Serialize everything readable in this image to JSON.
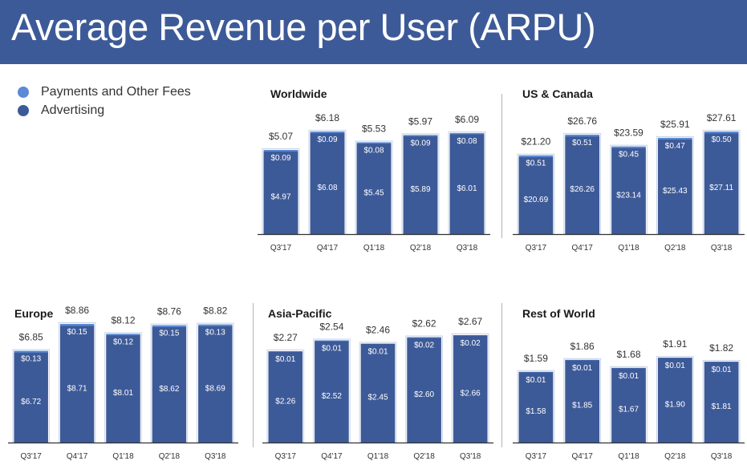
{
  "title": "Average Revenue per User (ARPU)",
  "legend": [
    {
      "label": "Payments and Other Fees",
      "color": "#5b8ad6"
    },
    {
      "label": "Advertising",
      "color": "#3d5a98"
    }
  ],
  "colors": {
    "advertising": "#3d5a98",
    "payments": "#5b8ad6",
    "header": "#3d5a98"
  },
  "chart_data": [
    {
      "type": "bar",
      "stacked": true,
      "title": "Worldwide",
      "categories": [
        "Q3'17",
        "Q4'17",
        "Q1'18",
        "Q2'18",
        "Q3'18"
      ],
      "series": [
        {
          "name": "Advertising",
          "values": [
            4.97,
            6.08,
            5.45,
            5.89,
            6.01
          ],
          "labels": [
            "$4.97",
            "$6.08",
            "$5.45",
            "$5.89",
            "$6.01"
          ]
        },
        {
          "name": "Payments and Other Fees",
          "values": [
            0.09,
            0.09,
            0.08,
            0.09,
            0.08
          ],
          "labels": [
            "$0.09",
            "$0.09",
            "$0.08",
            "$0.09",
            "$0.08"
          ]
        }
      ],
      "totals": [
        5.07,
        6.18,
        5.53,
        5.97,
        6.09
      ],
      "total_labels": [
        "$5.07",
        "$6.18",
        "$5.53",
        "$5.97",
        "$6.09"
      ]
    },
    {
      "type": "bar",
      "stacked": true,
      "title": "US & Canada",
      "categories": [
        "Q3'17",
        "Q4'17",
        "Q1'18",
        "Q2'18",
        "Q3'18"
      ],
      "series": [
        {
          "name": "Advertising",
          "values": [
            20.69,
            26.26,
            23.14,
            25.43,
            27.11
          ],
          "labels": [
            "$20.69",
            "$26.26",
            "$23.14",
            "$25.43",
            "$27.11"
          ]
        },
        {
          "name": "Payments and Other Fees",
          "values": [
            0.51,
            0.51,
            0.45,
            0.47,
            0.5
          ],
          "labels": [
            "$0.51",
            "$0.51",
            "$0.45",
            "$0.47",
            "$0.50"
          ]
        }
      ],
      "totals": [
        21.2,
        26.76,
        23.59,
        25.91,
        27.61
      ],
      "total_labels": [
        "$21.20",
        "$26.76",
        "$23.59",
        "$25.91",
        "$27.61"
      ]
    },
    {
      "type": "bar",
      "stacked": true,
      "title": "Europe",
      "categories": [
        "Q3'17",
        "Q4'17",
        "Q1'18",
        "Q2'18",
        "Q3'18"
      ],
      "series": [
        {
          "name": "Advertising",
          "values": [
            6.72,
            8.71,
            8.01,
            8.62,
            8.69
          ],
          "labels": [
            "$6.72",
            "$8.71",
            "$8.01",
            "$8.62",
            "$8.69"
          ]
        },
        {
          "name": "Payments and Other Fees",
          "values": [
            0.13,
            0.15,
            0.12,
            0.15,
            0.13
          ],
          "labels": [
            "$0.13",
            "$0.15",
            "$0.12",
            "$0.15",
            "$0.13"
          ]
        }
      ],
      "totals": [
        6.85,
        8.86,
        8.12,
        8.76,
        8.82
      ],
      "total_labels": [
        "$6.85",
        "$8.86",
        "$8.12",
        "$8.76",
        "$8.82"
      ]
    },
    {
      "type": "bar",
      "stacked": true,
      "title": "Asia-Pacific",
      "categories": [
        "Q3'17",
        "Q4'17",
        "Q1'18",
        "Q2'18",
        "Q3'18"
      ],
      "series": [
        {
          "name": "Advertising",
          "values": [
            2.26,
            2.52,
            2.45,
            2.6,
            2.66
          ],
          "labels": [
            "$2.26",
            "$2.52",
            "$2.45",
            "$2.60",
            "$2.66"
          ]
        },
        {
          "name": "Payments and Other Fees",
          "values": [
            0.01,
            0.01,
            0.01,
            0.02,
            0.02
          ],
          "labels": [
            "$0.01",
            "$0.01",
            "$0.01",
            "$0.02",
            "$0.02"
          ]
        }
      ],
      "totals": [
        2.27,
        2.54,
        2.46,
        2.62,
        2.67
      ],
      "total_labels": [
        "$2.27",
        "$2.54",
        "$2.46",
        "$2.62",
        "$2.67"
      ]
    },
    {
      "type": "bar",
      "stacked": true,
      "title": "Rest of World",
      "categories": [
        "Q3'17",
        "Q4'17",
        "Q1'18",
        "Q2'18",
        "Q3'18"
      ],
      "series": [
        {
          "name": "Advertising",
          "values": [
            1.58,
            1.85,
            1.67,
            1.9,
            1.81
          ],
          "labels": [
            "$1.58",
            "$1.85",
            "$1.67",
            "$1.90",
            "$1.81"
          ]
        },
        {
          "name": "Payments and Other Fees",
          "values": [
            0.01,
            0.01,
            0.01,
            0.01,
            0.01
          ],
          "labels": [
            "$0.01",
            "$0.01",
            "$0.01",
            "$0.01",
            "$0.01"
          ]
        }
      ],
      "totals": [
        1.59,
        1.86,
        1.68,
        1.91,
        1.82
      ],
      "total_labels": [
        "$1.59",
        "$1.86",
        "$1.68",
        "$1.91",
        "$1.82"
      ]
    }
  ]
}
